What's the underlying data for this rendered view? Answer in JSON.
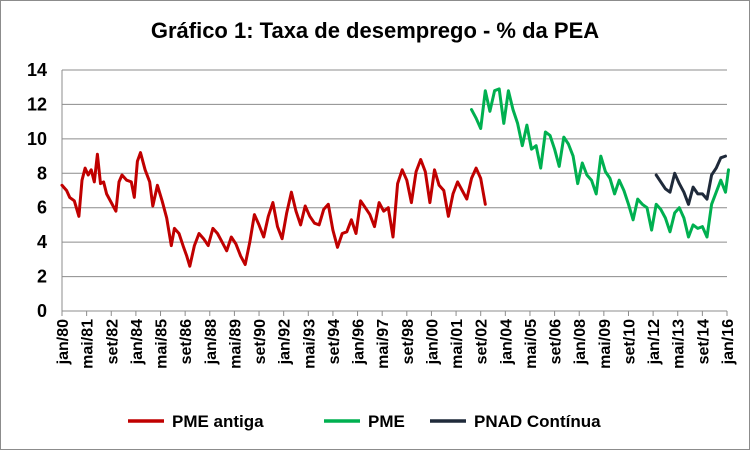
{
  "chart_data": {
    "type": "line",
    "title": "Gráfico 1: Taxa de desemprego - % da PEA",
    "xlabel": "",
    "ylabel": "",
    "ylim": [
      0,
      14
    ],
    "yticks": [
      0,
      2,
      4,
      6,
      8,
      10,
      12,
      14
    ],
    "x_range": [
      "1980-01",
      "2016-01"
    ],
    "xtick_labels": [
      "jan/80",
      "mai/81",
      "set/82",
      "jan/84",
      "mai/85",
      "set/86",
      "jan/88",
      "mai/89",
      "set/90",
      "jan/92",
      "mai/93",
      "set/94",
      "jan/96",
      "mai/97",
      "set/98",
      "jan/00",
      "mai/01",
      "set/02",
      "jan/04",
      "mai/05",
      "set/06",
      "jan/08",
      "mai/09",
      "set/10",
      "jan/12",
      "mai/13",
      "set/14",
      "jan/16"
    ],
    "legend_position": "bottom",
    "gridlines": "horizontal",
    "series": [
      {
        "name": "PME antiga",
        "color": "#c00000",
        "points": [
          [
            "1980-01",
            7.3
          ],
          [
            "1980-04",
            7.0
          ],
          [
            "1980-06",
            6.6
          ],
          [
            "1980-09",
            6.4
          ],
          [
            "1980-12",
            5.5
          ],
          [
            "1981-02",
            7.6
          ],
          [
            "1981-04",
            8.3
          ],
          [
            "1981-06",
            7.9
          ],
          [
            "1981-08",
            8.2
          ],
          [
            "1981-10",
            7.5
          ],
          [
            "1981-12",
            9.1
          ],
          [
            "1982-02",
            7.4
          ],
          [
            "1982-04",
            7.5
          ],
          [
            "1982-06",
            6.8
          ],
          [
            "1982-09",
            6.3
          ],
          [
            "1982-12",
            5.8
          ],
          [
            "1983-02",
            7.5
          ],
          [
            "1983-04",
            7.9
          ],
          [
            "1983-07",
            7.6
          ],
          [
            "1983-10",
            7.5
          ],
          [
            "1983-12",
            6.6
          ],
          [
            "1984-02",
            8.7
          ],
          [
            "1984-04",
            9.2
          ],
          [
            "1984-07",
            8.2
          ],
          [
            "1984-10",
            7.5
          ],
          [
            "1984-12",
            6.1
          ],
          [
            "1985-03",
            7.3
          ],
          [
            "1985-06",
            6.4
          ],
          [
            "1985-09",
            5.4
          ],
          [
            "1985-12",
            3.8
          ],
          [
            "1986-02",
            4.8
          ],
          [
            "1986-05",
            4.5
          ],
          [
            "1986-08",
            3.7
          ],
          [
            "1986-10",
            3.2
          ],
          [
            "1986-12",
            2.6
          ],
          [
            "1987-03",
            3.8
          ],
          [
            "1987-06",
            4.5
          ],
          [
            "1987-09",
            4.2
          ],
          [
            "1987-12",
            3.8
          ],
          [
            "1988-03",
            4.8
          ],
          [
            "1988-06",
            4.5
          ],
          [
            "1988-09",
            4.0
          ],
          [
            "1988-12",
            3.5
          ],
          [
            "1989-03",
            4.3
          ],
          [
            "1989-06",
            3.9
          ],
          [
            "1989-09",
            3.2
          ],
          [
            "1989-12",
            2.7
          ],
          [
            "1990-03",
            4.0
          ],
          [
            "1990-06",
            5.6
          ],
          [
            "1990-09",
            5.0
          ],
          [
            "1990-12",
            4.3
          ],
          [
            "1991-03",
            5.5
          ],
          [
            "1991-06",
            6.3
          ],
          [
            "1991-09",
            4.9
          ],
          [
            "1991-12",
            4.2
          ],
          [
            "1992-03",
            5.7
          ],
          [
            "1992-06",
            6.9
          ],
          [
            "1992-09",
            5.8
          ],
          [
            "1992-12",
            5.0
          ],
          [
            "1993-03",
            6.1
          ],
          [
            "1993-06",
            5.5
          ],
          [
            "1993-09",
            5.1
          ],
          [
            "1993-12",
            5.0
          ],
          [
            "1994-03",
            5.9
          ],
          [
            "1994-06",
            6.2
          ],
          [
            "1994-09",
            4.7
          ],
          [
            "1994-12",
            3.7
          ],
          [
            "1995-03",
            4.5
          ],
          [
            "1995-06",
            4.6
          ],
          [
            "1995-09",
            5.3
          ],
          [
            "1995-12",
            4.5
          ],
          [
            "1996-03",
            6.4
          ],
          [
            "1996-06",
            6.0
          ],
          [
            "1996-09",
            5.6
          ],
          [
            "1996-12",
            4.9
          ],
          [
            "1997-03",
            6.3
          ],
          [
            "1997-06",
            5.8
          ],
          [
            "1997-09",
            6.0
          ],
          [
            "1997-12",
            4.3
          ],
          [
            "1998-03",
            7.4
          ],
          [
            "1998-06",
            8.2
          ],
          [
            "1998-09",
            7.6
          ],
          [
            "1998-12",
            6.3
          ],
          [
            "1999-03",
            8.1
          ],
          [
            "1999-06",
            8.8
          ],
          [
            "1999-09",
            8.1
          ],
          [
            "1999-12",
            6.3
          ],
          [
            "2000-03",
            8.2
          ],
          [
            "2000-06",
            7.3
          ],
          [
            "2000-09",
            7.0
          ],
          [
            "2000-12",
            5.5
          ],
          [
            "2001-03",
            6.8
          ],
          [
            "2001-06",
            7.5
          ],
          [
            "2001-09",
            7.0
          ],
          [
            "2001-12",
            6.5
          ],
          [
            "2002-03",
            7.7
          ],
          [
            "2002-06",
            8.3
          ],
          [
            "2002-09",
            7.7
          ],
          [
            "2002-12",
            6.2
          ]
        ]
      },
      {
        "name": "PME",
        "color": "#00b050",
        "points": [
          [
            "2002-03",
            11.7
          ],
          [
            "2002-06",
            11.2
          ],
          [
            "2002-09",
            10.6
          ],
          [
            "2002-12",
            12.8
          ],
          [
            "2003-03",
            11.6
          ],
          [
            "2003-06",
            12.8
          ],
          [
            "2003-09",
            12.9
          ],
          [
            "2003-12",
            10.9
          ],
          [
            "2004-03",
            12.8
          ],
          [
            "2004-06",
            11.7
          ],
          [
            "2004-09",
            10.9
          ],
          [
            "2004-12",
            9.6
          ],
          [
            "2005-03",
            10.8
          ],
          [
            "2005-06",
            9.4
          ],
          [
            "2005-09",
            9.6
          ],
          [
            "2005-12",
            8.3
          ],
          [
            "2006-03",
            10.4
          ],
          [
            "2006-06",
            10.2
          ],
          [
            "2006-09",
            9.4
          ],
          [
            "2006-12",
            8.4
          ],
          [
            "2007-03",
            10.1
          ],
          [
            "2007-06",
            9.7
          ],
          [
            "2007-09",
            9.0
          ],
          [
            "2007-12",
            7.4
          ],
          [
            "2008-03",
            8.6
          ],
          [
            "2008-06",
            7.9
          ],
          [
            "2008-09",
            7.6
          ],
          [
            "2008-12",
            6.8
          ],
          [
            "2009-03",
            9.0
          ],
          [
            "2009-06",
            8.1
          ],
          [
            "2009-09",
            7.7
          ],
          [
            "2009-12",
            6.8
          ],
          [
            "2010-03",
            7.6
          ],
          [
            "2010-06",
            7.0
          ],
          [
            "2010-09",
            6.2
          ],
          [
            "2010-12",
            5.3
          ],
          [
            "2011-03",
            6.5
          ],
          [
            "2011-06",
            6.2
          ],
          [
            "2011-09",
            6.0
          ],
          [
            "2011-12",
            4.7
          ],
          [
            "2012-03",
            6.2
          ],
          [
            "2012-06",
            5.9
          ],
          [
            "2012-09",
            5.4
          ],
          [
            "2012-12",
            4.6
          ],
          [
            "2013-03",
            5.7
          ],
          [
            "2013-06",
            6.0
          ],
          [
            "2013-09",
            5.4
          ],
          [
            "2013-12",
            4.3
          ],
          [
            "2014-03",
            5.0
          ],
          [
            "2014-06",
            4.8
          ],
          [
            "2014-09",
            4.9
          ],
          [
            "2014-12",
            4.3
          ],
          [
            "2015-03",
            6.2
          ],
          [
            "2015-06",
            6.9
          ],
          [
            "2015-09",
            7.6
          ],
          [
            "2015-12",
            6.9
          ],
          [
            "2016-02",
            8.2
          ]
        ]
      },
      {
        "name": "PNAD Contínua",
        "color": "#1f2a3a",
        "points": [
          [
            "2012-03",
            7.9
          ],
          [
            "2012-06",
            7.5
          ],
          [
            "2012-09",
            7.1
          ],
          [
            "2012-12",
            6.9
          ],
          [
            "2013-03",
            8.0
          ],
          [
            "2013-06",
            7.4
          ],
          [
            "2013-09",
            6.9
          ],
          [
            "2013-12",
            6.2
          ],
          [
            "2014-03",
            7.2
          ],
          [
            "2014-06",
            6.8
          ],
          [
            "2014-09",
            6.8
          ],
          [
            "2014-12",
            6.5
          ],
          [
            "2015-03",
            7.9
          ],
          [
            "2015-06",
            8.3
          ],
          [
            "2015-09",
            8.9
          ],
          [
            "2015-12",
            9.0
          ]
        ]
      }
    ]
  }
}
